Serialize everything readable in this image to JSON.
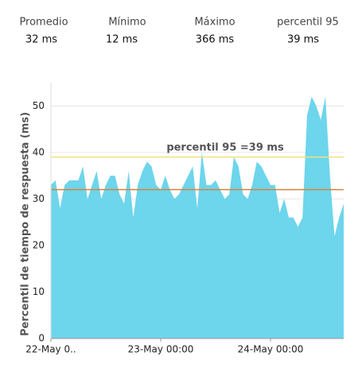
{
  "stats": [
    {
      "label": "Promedio",
      "value": "32 ms"
    },
    {
      "label": "Mínimo",
      "value": "12 ms"
    },
    {
      "label": "Máximo",
      "value": "366 ms"
    },
    {
      "label": "percentil 95",
      "value": "39 ms"
    }
  ],
  "chart_data": {
    "type": "area",
    "y_label": "Percentil de tiempo de respuesta (ms)",
    "annotation": "percentil 95 =39 ms",
    "color": "#6dd5ec",
    "x": [
      0,
      1,
      2,
      3,
      4,
      5,
      6,
      7,
      8,
      9,
      10,
      11,
      12,
      13,
      14,
      15,
      16,
      17,
      18,
      19,
      20,
      21,
      22,
      23,
      24,
      25,
      26,
      27,
      28,
      29,
      30,
      31,
      32,
      33,
      34,
      35,
      36,
      37,
      38,
      39,
      40,
      41,
      42,
      43,
      44,
      45,
      46,
      47,
      48,
      49,
      50,
      51,
      52,
      53,
      54,
      55,
      56,
      57,
      58,
      59,
      60,
      61,
      62,
      63,
      64
    ],
    "values": [
      33,
      34,
      28,
      33,
      34,
      34,
      34,
      37,
      30,
      33,
      36,
      30,
      33,
      35,
      35,
      31,
      29,
      36,
      26,
      33,
      36,
      38,
      37,
      33,
      32,
      35,
      32,
      30,
      31,
      33,
      35,
      37,
      28,
      40,
      33,
      33,
      34,
      32,
      30,
      31,
      39,
      37,
      31,
      30,
      33,
      38,
      37,
      35,
      33,
      33,
      27,
      30,
      26,
      26,
      24,
      26,
      48,
      52,
      50,
      47,
      52,
      35,
      22,
      26,
      29
    ],
    "reference_lines": [
      {
        "value": 39,
        "color": "#f2e07c"
      },
      {
        "value": 32,
        "color": "#d9833a"
      }
    ],
    "xlim": [
      0,
      64
    ],
    "xticks": [
      {
        "value": 0,
        "label": "22-May 0.."
      },
      {
        "value": 24,
        "label": "23-May 00:00"
      },
      {
        "value": 48,
        "label": "24-May 00:00"
      }
    ],
    "ylim": [
      0,
      55
    ],
    "yticks": [
      0,
      10,
      20,
      30,
      40,
      50
    ],
    "grid": true
  }
}
